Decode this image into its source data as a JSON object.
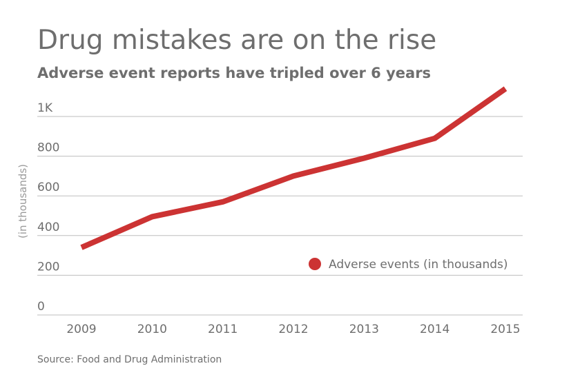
{
  "title": "Drug mistakes are on the rise",
  "subtitle": "Adverse event reports have tripled over 6 years",
  "source": "Source: Food and Drug Administration",
  "accent_color": "#cc3333",
  "chart_data": {
    "type": "line",
    "x": [
      "2009",
      "2010",
      "2011",
      "2012",
      "2013",
      "2014",
      "2015"
    ],
    "series": [
      {
        "name": "Adverse events (in thousands)",
        "values": [
          340,
          495,
          570,
          700,
          790,
          890,
          1140
        ]
      }
    ],
    "ylabel": "(in thousands)",
    "yticks": [
      0,
      200,
      400,
      600,
      800,
      1000
    ],
    "ytick_labels": [
      "0",
      "200",
      "400",
      "600",
      "800",
      "1K"
    ],
    "ylim": [
      0,
      1150
    ],
    "grid": true,
    "legend_position": "bottom-right"
  }
}
